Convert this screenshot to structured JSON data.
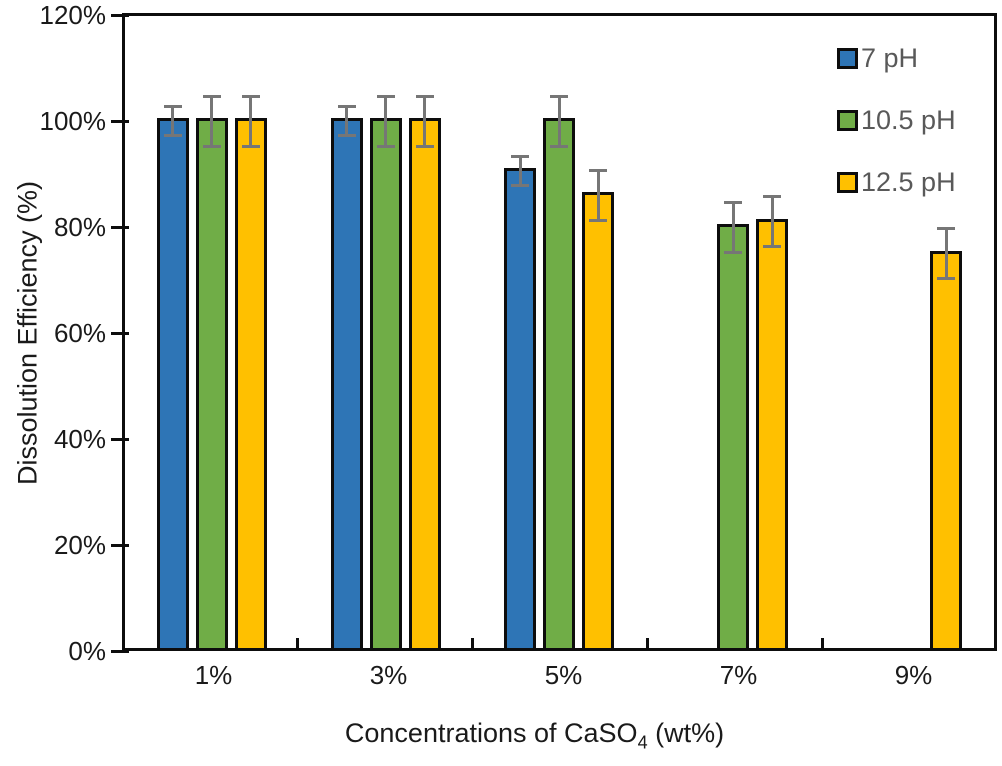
{
  "chart_data": {
    "type": "bar",
    "title": "",
    "ylabel": "Dissolution Efficiency (%)",
    "xlabel_prefix": "Concentrations of CaSO",
    "xlabel_sub": "4",
    "xlabel_suffix": " (wt%)",
    "categories": [
      "1%",
      "3%",
      "5%",
      "7%",
      "9%"
    ],
    "ylim": [
      0,
      120
    ],
    "ytick_step": 20,
    "ytick_labels": [
      "0%",
      "20%",
      "40%",
      "60%",
      "80%",
      "100%",
      "120%"
    ],
    "grid": false,
    "legend_position": "top-right",
    "bar_border_color": "#0d0d0d",
    "error_bar_color": "#767676",
    "series": [
      {
        "name": "7 pH",
        "color": "#2E75B6",
        "values": [
          100,
          100,
          90.5,
          null,
          null
        ],
        "errors": [
          3,
          3,
          3,
          null,
          null
        ]
      },
      {
        "name": "10.5 pH",
        "color": "#70AD47",
        "values": [
          100,
          100,
          100,
          80,
          null
        ],
        "errors": [
          5,
          5,
          5,
          5,
          null
        ]
      },
      {
        "name": "12.5 pH",
        "color": "#FFC000",
        "values": [
          100,
          100,
          86,
          81,
          75
        ],
        "errors": [
          5,
          5,
          5,
          5,
          5
        ]
      }
    ]
  }
}
